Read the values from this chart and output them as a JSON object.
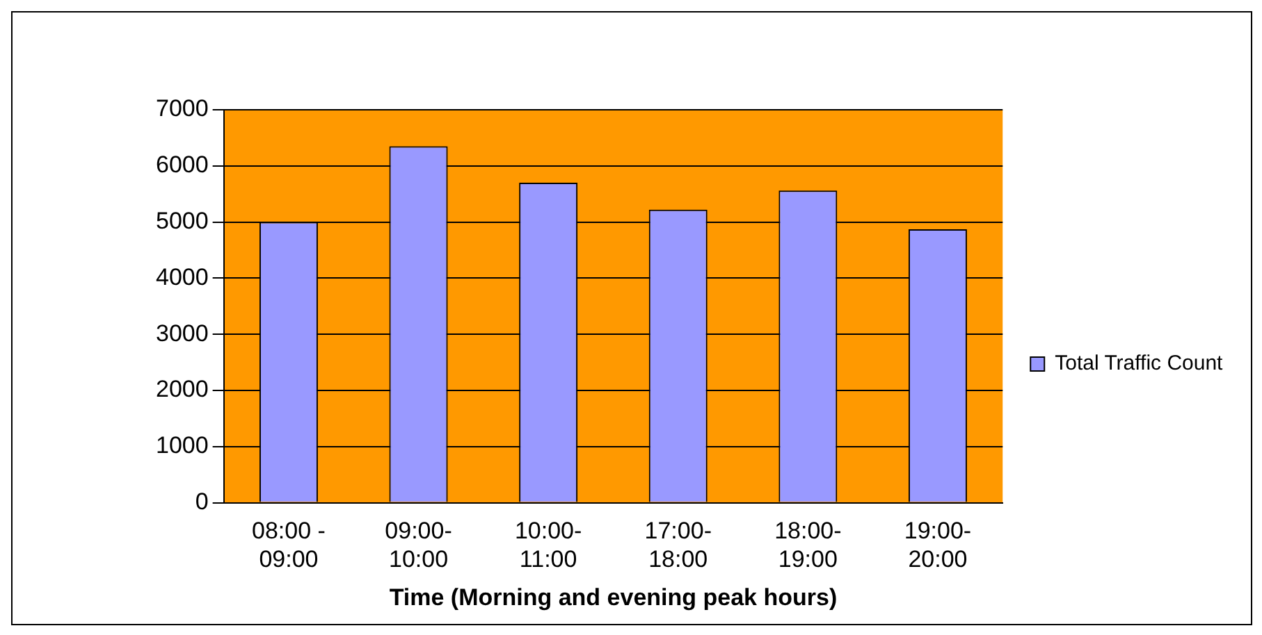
{
  "chart_data": {
    "type": "bar",
    "xlabel": "Time (Morning and evening peak hours)",
    "categories": [
      "08:00 - 09:00",
      "09:00-10:00",
      "10:00-11:00",
      "17:00-18:00",
      "18:00-19:00",
      "19:00-20:00"
    ],
    "series": [
      {
        "name": "Total Traffic Count",
        "color": "#9999ff",
        "values": [
          5000,
          6350,
          5700,
          5220,
          5560,
          4870
        ]
      }
    ],
    "ylim": [
      0,
      7000
    ],
    "yticks": [
      0,
      1000,
      2000,
      3000,
      4000,
      5000,
      6000,
      7000
    ],
    "grid": "y",
    "legend": "right"
  }
}
